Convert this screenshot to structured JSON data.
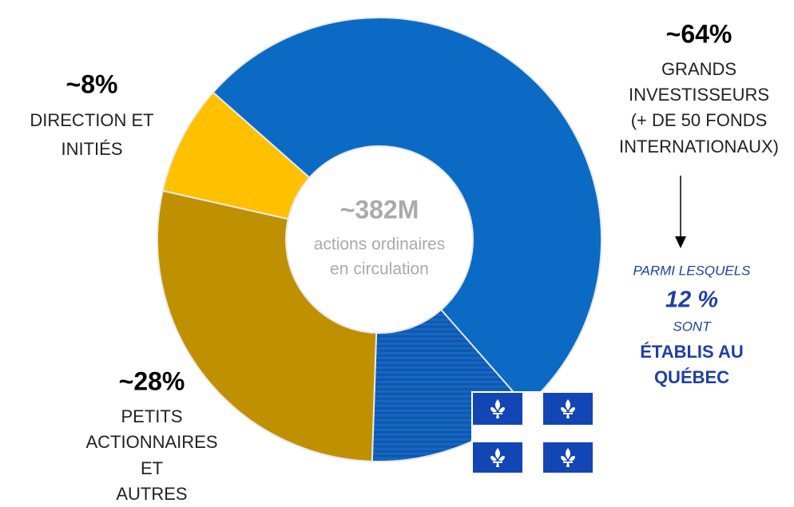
{
  "chart_data": {
    "type": "donut",
    "center_lines": [
      "~382M",
      "actions ordinaires",
      "en circulation"
    ],
    "segments": [
      {
        "name_lines": [
          "GRANDS",
          "INVESTISSEURS",
          "(+ DE 50 FONDS",
          "INTERNATIONAUX)"
        ],
        "value": 64,
        "value_label": "~64%",
        "color": "#0b6bc4"
      },
      {
        "name_lines": [
          "PETITS",
          "ACTIONNAIRES",
          "ET",
          "AUTRES"
        ],
        "value": 28,
        "value_label": "~28%",
        "color": "#bf9000"
      },
      {
        "name_lines": [
          "DIRECTION ET",
          "INITIÉS"
        ],
        "value": 8,
        "value_label": "~8%",
        "color": "#ffc000"
      }
    ],
    "quebec": {
      "lines_before": [
        "PARMI LESQUELS"
      ],
      "value": 12,
      "value_label": "12 %",
      "lines_after": [
        "SONT",
        "ÉTABLIS AU",
        "QUÉBEC"
      ],
      "color": "#1d4fa8"
    }
  }
}
